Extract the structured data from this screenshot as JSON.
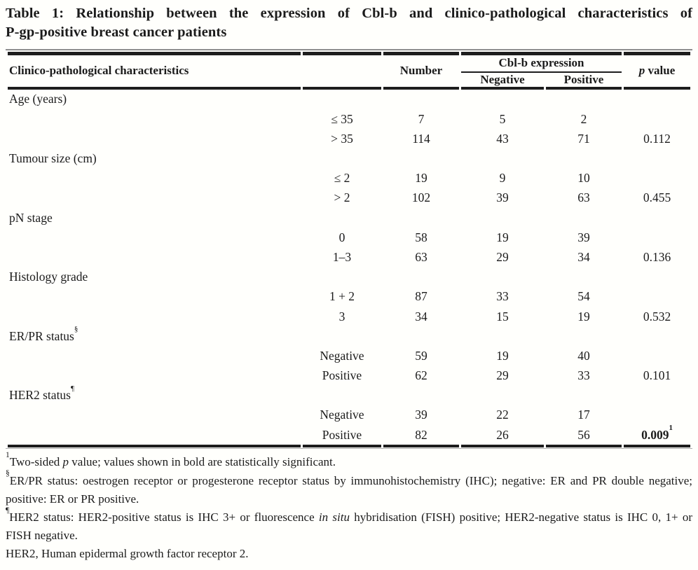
{
  "title": {
    "line1": "Table 1: Relationship between the expression of Cbl-b and clinico-pathological characteristics of",
    "line2": "P-gp-positive breast cancer patients"
  },
  "table": {
    "header": {
      "characteristics": "Clinico-pathological characteristics",
      "number": "Number",
      "group": "Cbl-b expression",
      "negative": "Negative",
      "positive": "Positive",
      "p_italic": "p",
      "p_rest": " value"
    },
    "rows": [
      {
        "category": "Age (years)"
      },
      {
        "subcategory": "≤ 35",
        "number": "7",
        "negative": "5",
        "positive": "2"
      },
      {
        "subcategory": "> 35",
        "number": "114",
        "negative": "43",
        "positive": "71",
        "p_value": "0.112"
      },
      {
        "category": "Tumour size (cm)"
      },
      {
        "subcategory": "≤ 2",
        "number": "19",
        "negative": "9",
        "positive": "10"
      },
      {
        "subcategory": "> 2",
        "number": "102",
        "negative": "39",
        "positive": "63",
        "p_value": "0.455"
      },
      {
        "category": "pN stage"
      },
      {
        "subcategory": "0",
        "number": "58",
        "negative": "19",
        "positive": "39"
      },
      {
        "subcategory": "1–3",
        "number": "63",
        "negative": "29",
        "positive": "34",
        "p_value": "0.136"
      },
      {
        "category": "Histology grade"
      },
      {
        "subcategory": "1 + 2",
        "number": "87",
        "negative": "33",
        "positive": "54"
      },
      {
        "subcategory": "3",
        "number": "34",
        "negative": "15",
        "positive": "19",
        "p_value": "0.532"
      },
      {
        "category": "ER/PR status",
        "category_sup": "§"
      },
      {
        "subcategory": "Negative",
        "number": "59",
        "negative": "19",
        "positive": "40"
      },
      {
        "subcategory": "Positive",
        "number": "62",
        "negative": "29",
        "positive": "33",
        "p_value": "0.101"
      },
      {
        "category": "HER2 status",
        "category_sup": "¶"
      },
      {
        "subcategory": "Negative",
        "number": "39",
        "negative": "22",
        "positive": "17"
      },
      {
        "subcategory": "Positive",
        "number": "82",
        "negative": "26",
        "positive": "56",
        "p_value": "0.009",
        "p_sup": "1"
      }
    ]
  },
  "footnotes": [
    {
      "sup": "1",
      "pre": "Two-sided ",
      "italic": "p",
      "post": " value; values shown in bold are statistically significant."
    },
    {
      "sup": "§",
      "pre": "ER/PR status: oestrogen receptor or progesterone receptor status by immunohistochemistry (IHC); negative: ER and PR double negative; positive: ER or PR positive."
    },
    {
      "sup": "¶",
      "pre": "HER2 status: HER2-positive status is IHC 3+ or fluorescence ",
      "italic": "in situ",
      "post": " hybridisation (FISH) positive; HER2-negative status is IHC 0, 1+ or FISH negative."
    },
    {
      "pre": "HER2, Human epidermal growth factor receptor 2."
    }
  ]
}
